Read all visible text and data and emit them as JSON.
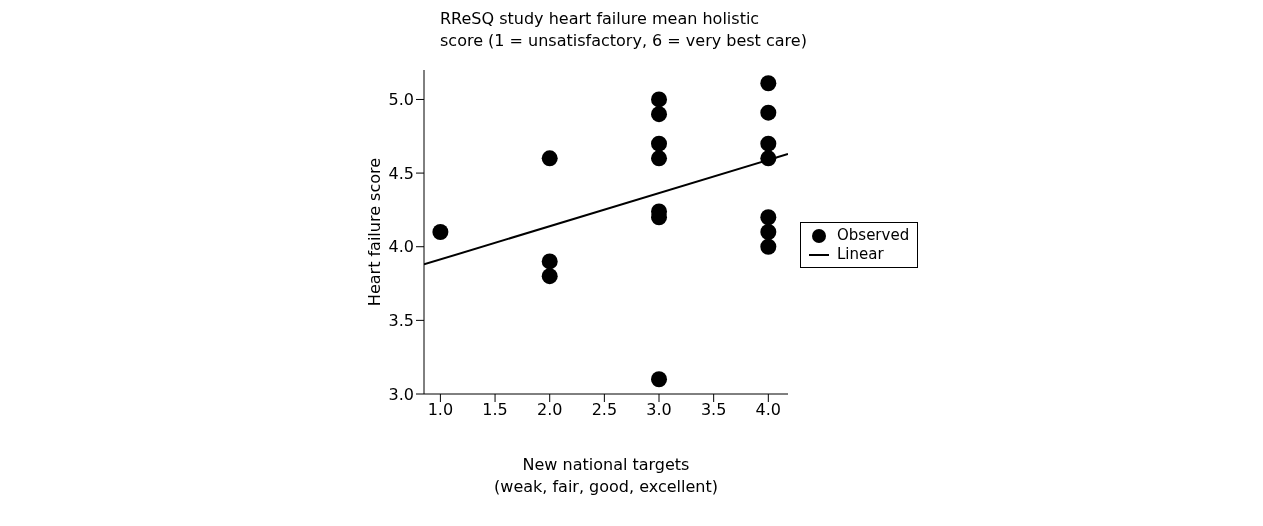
{
  "chart_data": {
    "type": "scatter",
    "title": "RReSQ study heart failure mean holistic\nscore (1 = unsatisfactory, 6 = very best care)",
    "xlabel": "New national targets\n(weak, fair, good, excellent)",
    "ylabel": "Heart failure score",
    "series": [
      {
        "name": "Observed",
        "color": "#000000",
        "marker": "circle",
        "x": [
          1,
          2,
          2,
          2,
          3,
          3,
          3,
          3,
          3,
          3,
          3,
          4,
          4,
          4,
          4,
          4,
          4,
          4
        ],
        "values": [
          4.1,
          4.6,
          3.9,
          3.8,
          5.0,
          4.9,
          4.7,
          4.6,
          4.24,
          4.2,
          3.1,
          5.11,
          4.91,
          4.7,
          4.6,
          4.2,
          4.1,
          4.0
        ]
      },
      {
        "name": "Linear",
        "type": "line",
        "color": "#000000",
        "marker": "none",
        "x": [
          0.85,
          4.18
        ],
        "values": [
          3.88,
          4.63
        ]
      }
    ],
    "xlim": [
      0.85,
      4.18
    ],
    "xticks": [
      {
        "value": 1,
        "label": "1.0"
      },
      1.5,
      {
        "value": 2,
        "label": "2.0"
      },
      2.5,
      {
        "value": 3,
        "label": "3.0"
      },
      3.5,
      {
        "value": 4,
        "label": "4.0"
      }
    ],
    "ylim": [
      3.0,
      5.2
    ],
    "yticks": [
      {
        "value": 3,
        "label": "3.0"
      },
      3.5,
      {
        "value": 4,
        "label": "4.0"
      },
      4.5,
      {
        "value": 5,
        "label": "5.0"
      }
    ],
    "grid": false,
    "legend": "right"
  }
}
